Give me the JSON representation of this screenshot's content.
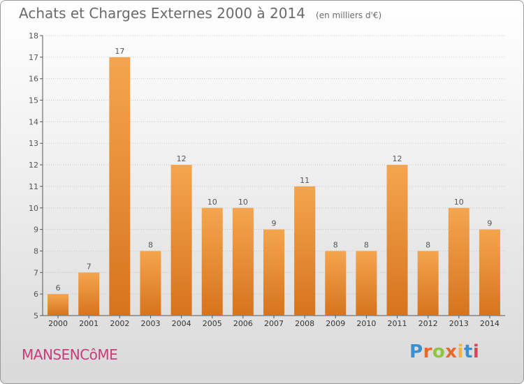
{
  "title": "Achats et Charges Externes 2000 à 2014",
  "unit": "(en milliers d'€)",
  "commune": "MANSENCôME",
  "logo": {
    "text": "Proxiti",
    "letter_colors": [
      "#3a8fd0",
      "#e8692a",
      "#8cc63e",
      "#e8692a",
      "#f2b33d",
      "#3a8fd0",
      "#d9435b"
    ]
  },
  "colors": {
    "bar_top": "#f5a54f",
    "bar_bottom": "#d6741d",
    "grid": "#c8c8c8",
    "axis": "#555555"
  },
  "chart_data": {
    "type": "bar",
    "title": "Achats et Charges Externes 2000 à 2014",
    "subtitle": "(en milliers d'€)",
    "categories": [
      "2000",
      "2001",
      "2002",
      "2003",
      "2004",
      "2005",
      "2006",
      "2007",
      "2008",
      "2009",
      "2010",
      "2011",
      "2012",
      "2013",
      "2014"
    ],
    "values": [
      6,
      7,
      17,
      8,
      12,
      10,
      10,
      9,
      11,
      8,
      8,
      12,
      8,
      10,
      9
    ],
    "ylim": [
      5,
      18
    ],
    "yticks": [
      5,
      6,
      7,
      8,
      9,
      10,
      11,
      12,
      13,
      14,
      15,
      16,
      17,
      18
    ],
    "grid": true,
    "data_labels": true
  }
}
